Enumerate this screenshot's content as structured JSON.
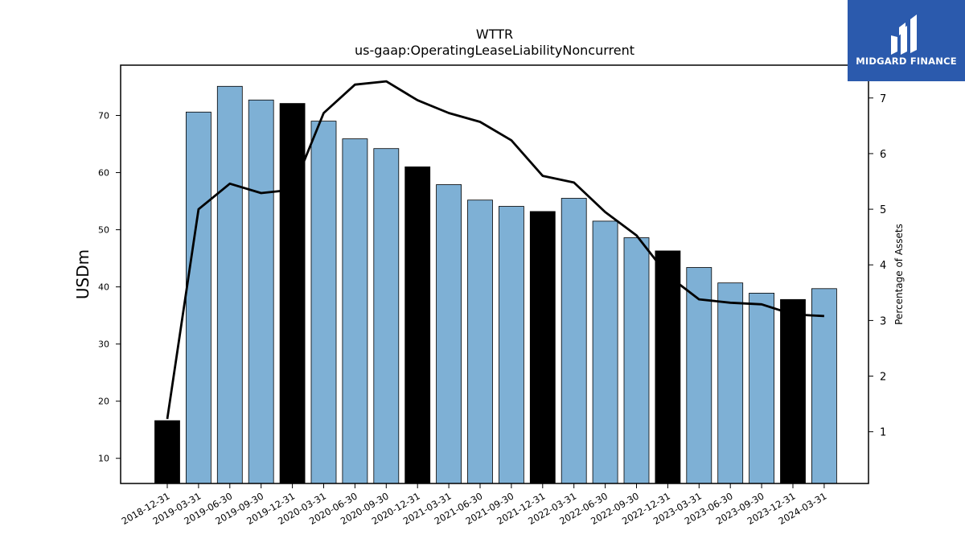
{
  "chart_data": {
    "type": "bar",
    "title": "WTTR",
    "subtitle": "us-gaap:OperatingLeaseLiabilityNoncurrent",
    "ylabel": "USDm",
    "y2label": "Percentage of Assets",
    "categories": [
      "2018-12-31",
      "2019-03-31",
      "2019-06-30",
      "2019-09-30",
      "2019-12-31",
      "2020-03-31",
      "2020-06-30",
      "2020-09-30",
      "2020-12-31",
      "2021-03-31",
      "2021-06-30",
      "2021-09-30",
      "2021-12-31",
      "2022-03-31",
      "2022-06-30",
      "2022-09-30",
      "2022-12-31",
      "2023-03-31",
      "2023-06-30",
      "2023-09-30",
      "2023-12-31",
      "2024-03-31"
    ],
    "series": [
      {
        "type": "bar",
        "values": [
          16.6,
          70.6,
          75.1,
          72.7,
          72.1,
          69.0,
          65.9,
          64.2,
          61.0,
          57.9,
          55.2,
          54.1,
          53.2,
          55.5,
          51.5,
          48.6,
          46.3,
          43.4,
          40.7,
          38.9,
          37.8,
          39.7
        ],
        "colors": [
          "#000000",
          "#7eb0d5",
          "#7eb0d5",
          "#7eb0d5",
          "#000000",
          "#7eb0d5",
          "#7eb0d5",
          "#7eb0d5",
          "#000000",
          "#7eb0d5",
          "#7eb0d5",
          "#7eb0d5",
          "#000000",
          "#7eb0d5",
          "#7eb0d5",
          "#7eb0d5",
          "#000000",
          "#7eb0d5",
          "#7eb0d5",
          "#7eb0d5",
          "#000000",
          "#7eb0d5"
        ]
      },
      {
        "type": "line",
        "axis": "right",
        "values": [
          1.23,
          5.0,
          5.46,
          5.29,
          5.35,
          6.73,
          7.24,
          7.3,
          6.96,
          6.73,
          6.57,
          6.24,
          5.6,
          5.48,
          4.95,
          4.53,
          3.81,
          3.38,
          3.32,
          3.29,
          3.11,
          3.08
        ],
        "color": "#000000"
      }
    ],
    "ylim": [
      5.6,
      78.8
    ],
    "yticks": [
      10,
      20,
      30,
      40,
      50,
      60,
      70
    ],
    "y2lim": [
      0.07,
      7.59
    ],
    "y2ticks": [
      1,
      2,
      3,
      4,
      5,
      6,
      7
    ],
    "grid": false,
    "legend": "none"
  },
  "logo": {
    "text": "MIDGARD FINANCE",
    "background": "#2b5aad",
    "icon": "midgard-logo-icon"
  }
}
